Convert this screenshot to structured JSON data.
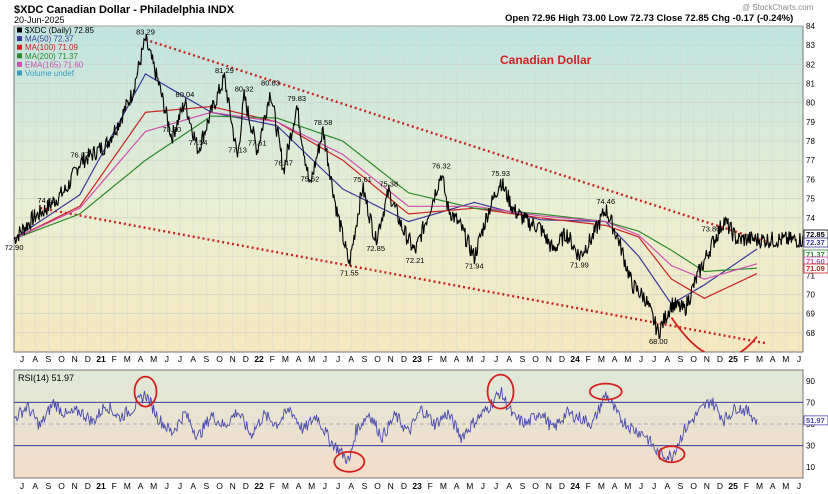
{
  "header": {
    "symbol_line": "$XDC Canadian Dollar - Philadelphia INDX",
    "date": "20-Jun-2025",
    "ohlc": "Open 72.96  High 73.00  Low 72.73  Close 72.85  Chg -0.17 (-0.24%)",
    "watermark": "@ StockCharts.com"
  },
  "legend": [
    {
      "label": "$XDC (Daily) 72.85",
      "color": "#000000"
    },
    {
      "label": "MA(50) 72.37",
      "color": "#3a3a9a"
    },
    {
      "label": "MA(100) 71.09",
      "color": "#cc2222"
    },
    {
      "label": "MA(200) 71.37",
      "color": "#2d8a2d"
    },
    {
      "label": "EMA(165) 71.60",
      "color": "#d04fb0"
    },
    {
      "label": "Volume undef",
      "color": "#3b9cc4"
    }
  ],
  "annotation_title": "Canadian Dollar",
  "rsi_label": "RSI(14) 51.97",
  "chart_data": [
    {
      "type": "line",
      "title": "$XDC Canadian Dollar - Philadelphia INDX",
      "ylim": [
        67,
        84
      ],
      "yticks": [
        68,
        69,
        70,
        71,
        72,
        73,
        74,
        75,
        76,
        77,
        78,
        79,
        80,
        81,
        82,
        83,
        84
      ],
      "grid": true,
      "legend_position": "top-left",
      "x_tick_labels": [
        "J",
        "A",
        "S",
        "O",
        "N",
        "D",
        "21",
        "F",
        "M",
        "A",
        "M",
        "J",
        "J",
        "A",
        "S",
        "O",
        "N",
        "D",
        "22",
        "F",
        "M",
        "A",
        "M",
        "J",
        "J",
        "A",
        "S",
        "O",
        "N",
        "D",
        "23",
        "F",
        "M",
        "A",
        "M",
        "J",
        "J",
        "A",
        "S",
        "O",
        "N",
        "D",
        "24",
        "F",
        "M",
        "A",
        "M",
        "J",
        "J",
        "A",
        "S",
        "O",
        "N",
        "D",
        "25",
        "F",
        "M",
        "A",
        "M",
        "J"
      ],
      "price_series": {
        "name": "$XDC (Daily)",
        "x": [
          0,
          3,
          5,
          8,
          10,
          14,
          16,
          18,
          20,
          22,
          24,
          26,
          28,
          30,
          32,
          34,
          35,
          37,
          39,
          41,
          43,
          45,
          47,
          49,
          51,
          53,
          55,
          57,
          59,
          61,
          63,
          65,
          66,
          68,
          70,
          72,
          74,
          76,
          78,
          80,
          82,
          84,
          86,
          88,
          90,
          92,
          94,
          96,
          98,
          100,
          102,
          104,
          106,
          108,
          110,
          112,
          113,
          114,
          116,
          118,
          120
        ],
        "values": [
          72.9,
          74.0,
          74.51,
          75.5,
          76.87,
          77.8,
          79.0,
          80.5,
          83.29,
          81.0,
          78.2,
          80.04,
          77.54,
          79.5,
          81.29,
          77.13,
          80.32,
          77.51,
          80.63,
          76.47,
          79.83,
          75.62,
          78.58,
          74.5,
          71.55,
          75.61,
          72.85,
          75.38,
          73.5,
          72.21,
          74.2,
          76.32,
          74.5,
          73.5,
          71.94,
          74.2,
          75.93,
          74.4,
          73.8,
          73.5,
          72.3,
          73.2,
          71.99,
          73.0,
          74.46,
          72.8,
          70.5,
          69.8,
          68.0,
          69.5,
          69.2,
          71.0,
          72.5,
          73.86,
          72.85,
          72.9,
          72.85,
          72.85,
          72.85,
          72.85,
          72.85
        ]
      },
      "moving_averages": [
        {
          "name": "MA(50)",
          "x": [
            0,
            10,
            20,
            30,
            40,
            50,
            60,
            70,
            80,
            90,
            95,
            100,
            105,
            113
          ],
          "values": [
            72.9,
            75.2,
            81.5,
            79.5,
            78.8,
            75.5,
            73.8,
            74.8,
            73.9,
            73.8,
            72.0,
            69.5,
            70.5,
            72.37
          ]
        },
        {
          "name": "MA(100)",
          "x": [
            0,
            10,
            20,
            30,
            40,
            50,
            60,
            70,
            80,
            90,
            95,
            100,
            105,
            113
          ],
          "values": [
            72.9,
            74.6,
            79.5,
            79.8,
            79.0,
            77.0,
            74.2,
            74.5,
            74.0,
            73.6,
            73.0,
            70.8,
            69.8,
            71.09
          ]
        },
        {
          "name": "MA(200)",
          "x": [
            0,
            10,
            20,
            30,
            40,
            50,
            60,
            70,
            80,
            90,
            95,
            100,
            105,
            113
          ],
          "values": [
            72.9,
            74.2,
            77.0,
            79.3,
            79.2,
            78.0,
            75.3,
            74.5,
            74.2,
            73.8,
            73.3,
            72.3,
            71.2,
            71.37
          ]
        },
        {
          "name": "EMA(165)",
          "x": [
            0,
            10,
            20,
            30,
            40,
            50,
            60,
            70,
            80,
            90,
            95,
            100,
            105,
            113
          ],
          "values": [
            72.9,
            74.5,
            78.5,
            79.5,
            79.0,
            77.3,
            74.6,
            74.6,
            74.1,
            73.8,
            73.1,
            71.5,
            70.8,
            71.6
          ]
        }
      ],
      "price_labels": [
        {
          "text": "72.90",
          "x": 0,
          "y": 72.9
        },
        {
          "text": "74.51",
          "x": 5,
          "y": 74.51
        },
        {
          "text": "76.87",
          "x": 10,
          "y": 76.87
        },
        {
          "text": "83.29",
          "x": 20,
          "y": 83.29
        },
        {
          "text": "78.20",
          "x": 24,
          "y": 78.2
        },
        {
          "text": "80.04",
          "x": 26,
          "y": 80.04
        },
        {
          "text": "77.54",
          "x": 28,
          "y": 77.54
        },
        {
          "text": "81.29",
          "x": 32,
          "y": 81.29
        },
        {
          "text": "77.13",
          "x": 34,
          "y": 77.13
        },
        {
          "text": "80.32",
          "x": 35,
          "y": 80.32
        },
        {
          "text": "77.51",
          "x": 37,
          "y": 77.51
        },
        {
          "text": "80.63",
          "x": 39,
          "y": 80.63
        },
        {
          "text": "76.47",
          "x": 41,
          "y": 76.47
        },
        {
          "text": "79.83",
          "x": 43,
          "y": 79.83
        },
        {
          "text": "75.62",
          "x": 45,
          "y": 75.62
        },
        {
          "text": "78.58",
          "x": 47,
          "y": 78.58
        },
        {
          "text": "71.55",
          "x": 51,
          "y": 71.55
        },
        {
          "text": "75.61",
          "x": 53,
          "y": 75.61
        },
        {
          "text": "72.85",
          "x": 55,
          "y": 72.85
        },
        {
          "text": "75.38",
          "x": 57,
          "y": 75.38
        },
        {
          "text": "72.21",
          "x": 61,
          "y": 72.21
        },
        {
          "text": "76.32",
          "x": 65,
          "y": 76.32
        },
        {
          "text": "71.94",
          "x": 70,
          "y": 71.94
        },
        {
          "text": "75.93",
          "x": 74,
          "y": 75.93
        },
        {
          "text": "71.99",
          "x": 86,
          "y": 71.99
        },
        {
          "text": "74.46",
          "x": 90,
          "y": 74.46
        },
        {
          "text": "68.00",
          "x": 98,
          "y": 68.0
        },
        {
          "text": "73.86",
          "x": 106,
          "y": 73.86
        }
      ],
      "trendlines": [
        {
          "style": "dotted",
          "color": "#cc2222",
          "from": [
            20,
            83.29
          ],
          "to": [
            113,
            72.9
          ]
        },
        {
          "style": "dotted",
          "color": "#cc2222",
          "from": [
            4,
            74.5
          ],
          "to": [
            113,
            67.6
          ]
        }
      ],
      "right_axis_badges": [
        {
          "text": "72.85",
          "color": "#000000"
        },
        {
          "text": "72.37",
          "color": "#3a3a9a"
        },
        {
          "text": "71.37",
          "color": "#2d8a2d"
        },
        {
          "text": "71.60",
          "color": "#d04fb0"
        },
        {
          "text": "71.09",
          "color": "#cc2222"
        }
      ]
    },
    {
      "type": "line",
      "title": "RSI(14)",
      "ylim": [
        0,
        100
      ],
      "yticks": [
        10,
        30,
        50,
        70,
        90
      ],
      "reference_lines": [
        70,
        30
      ],
      "series": [
        {
          "name": "RSI(14)",
          "x": [
            0,
            2,
            4,
            6,
            8,
            10,
            12,
            14,
            16,
            18,
            20,
            22,
            24,
            26,
            28,
            30,
            32,
            34,
            36,
            38,
            40,
            42,
            44,
            46,
            48,
            50,
            51,
            52,
            54,
            56,
            58,
            60,
            62,
            64,
            66,
            68,
            70,
            72,
            74,
            76,
            78,
            80,
            82,
            84,
            86,
            88,
            90,
            92,
            94,
            96,
            98,
            100,
            102,
            104,
            106,
            108,
            110,
            112,
            113
          ],
          "values": [
            55,
            66,
            48,
            70,
            58,
            62,
            52,
            68,
            56,
            64,
            78,
            55,
            42,
            60,
            38,
            58,
            48,
            62,
            40,
            58,
            50,
            64,
            44,
            58,
            35,
            22,
            15,
            44,
            60,
            38,
            58,
            42,
            64,
            50,
            60,
            38,
            52,
            64,
            80,
            56,
            50,
            62,
            45,
            60,
            56,
            50,
            78,
            56,
            46,
            40,
            22,
            20,
            45,
            60,
            72,
            54,
            66,
            60,
            52
          ]
        }
      ],
      "current_value": 51.97
    }
  ]
}
